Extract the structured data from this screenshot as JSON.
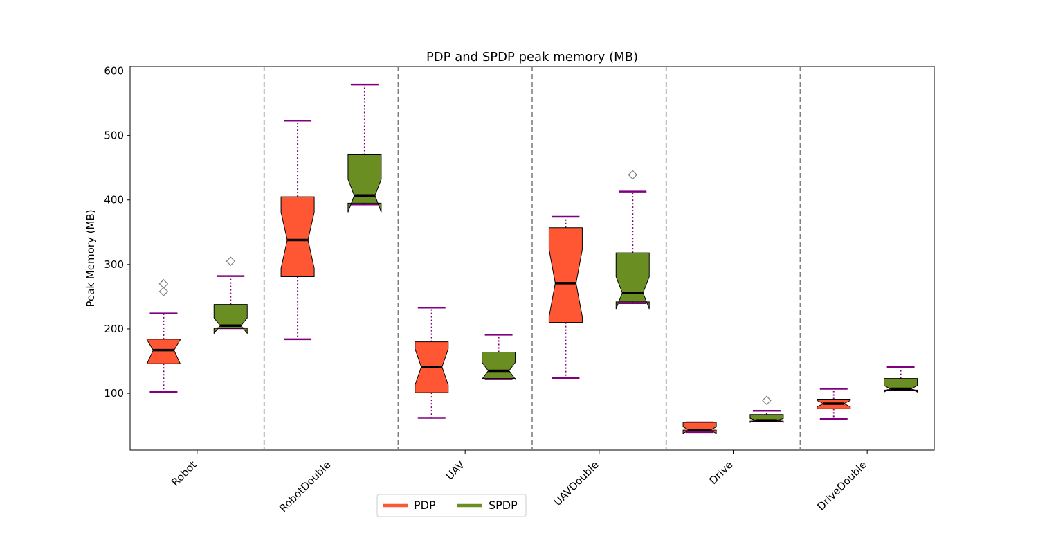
{
  "chart_data": {
    "type": "boxplot",
    "title": "PDP and SPDP peak memory (MB)",
    "xlabel": "",
    "ylabel": "Peak Memory (MB)",
    "ylim": [
      12,
      607
    ],
    "yticks": [
      100,
      200,
      300,
      400,
      500,
      600
    ],
    "grid": false,
    "notched": true,
    "categories": [
      "Robot",
      "RobotDouble",
      "UAV",
      "UAVDouble",
      "Drive",
      "DriveDouble"
    ],
    "series": [
      {
        "name": "PDP",
        "color": "#ff5733",
        "boxes": [
          {
            "whislo": 102,
            "q1": 146,
            "med": 167,
            "q3": 184,
            "whishi": 224,
            "notch_lo": 146,
            "notch_hi": 183,
            "fliers": [
              258,
              270
            ]
          },
          {
            "whislo": 184,
            "q1": 281,
            "med": 338,
            "q3": 405,
            "whishi": 523,
            "notch_lo": 294,
            "notch_hi": 381,
            "fliers": []
          },
          {
            "whislo": 62,
            "q1": 101,
            "med": 141,
            "q3": 180,
            "whishi": 233,
            "notch_lo": 113,
            "notch_hi": 169,
            "fliers": []
          },
          {
            "whislo": 124,
            "q1": 210,
            "med": 271,
            "q3": 357,
            "whishi": 374,
            "notch_lo": 219,
            "notch_hi": 323,
            "fliers": []
          },
          {
            "whislo": 40,
            "q1": 43,
            "med": 43,
            "q3": 55,
            "whishi": 55,
            "notch_lo": 38,
            "notch_hi": 48,
            "fliers": []
          },
          {
            "whislo": 60,
            "q1": 76,
            "med": 84,
            "q3": 91,
            "whishi": 107,
            "notch_lo": 79,
            "notch_hi": 89,
            "fliers": []
          }
        ]
      },
      {
        "name": "SPDP",
        "color": "#6b8e23",
        "boxes": [
          {
            "whislo": 201,
            "q1": 201,
            "med": 205,
            "q3": 238,
            "whishi": 282,
            "notch_lo": 193,
            "notch_hi": 217,
            "fliers": [
              305
            ]
          },
          {
            "whislo": 393,
            "q1": 395,
            "med": 407,
            "q3": 470,
            "whishi": 579,
            "notch_lo": 381,
            "notch_hi": 432,
            "fliers": []
          },
          {
            "whislo": 122,
            "q1": 123,
            "med": 135,
            "q3": 164,
            "whishi": 191,
            "notch_lo": 122,
            "notch_hi": 148,
            "fliers": []
          },
          {
            "whislo": 240,
            "q1": 242,
            "med": 256,
            "q3": 318,
            "whishi": 413,
            "notch_lo": 231,
            "notch_hi": 281,
            "fliers": [
              439
            ]
          },
          {
            "whislo": 57,
            "q1": 57,
            "med": 58,
            "q3": 67,
            "whishi": 73,
            "notch_lo": 55,
            "notch_hi": 61,
            "fliers": [
              89
            ]
          },
          {
            "whislo": 105,
            "q1": 105,
            "med": 107,
            "q3": 123,
            "whishi": 141,
            "notch_lo": 102,
            "notch_hi": 112,
            "fliers": []
          }
        ]
      }
    ],
    "legend": {
      "placement": "bottom-center",
      "entries": [
        "PDP",
        "SPDP"
      ]
    },
    "colors": {
      "whisker": "#800080",
      "median": "#000000",
      "flier": "#808080",
      "separator": "#808080"
    }
  }
}
